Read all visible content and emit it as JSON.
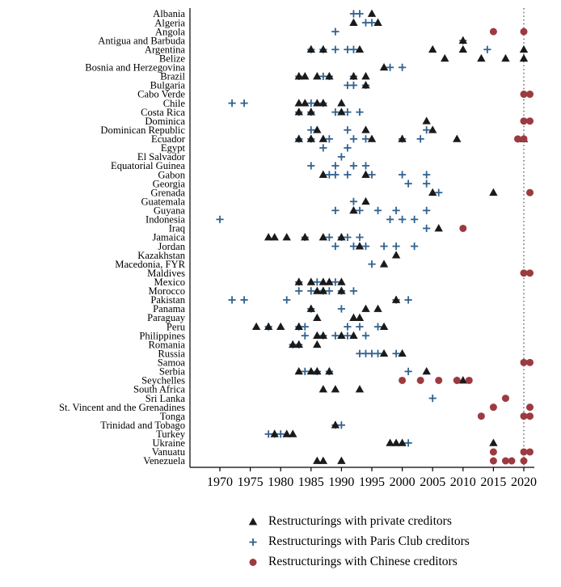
{
  "figure": {
    "background": "#ffffff",
    "axis_color": "#000000"
  },
  "chart_data": {
    "type": "scatter",
    "title": "",
    "xlabel": "",
    "ylabel": "",
    "grid": false,
    "legend_position": "bottom-left",
    "x_axis": {
      "min": 1965,
      "max": 2022,
      "ticks": [
        1970,
        1975,
        1980,
        1985,
        1990,
        1995,
        2000,
        2005,
        2010,
        2015,
        2020
      ]
    },
    "reference_line": {
      "year": 2020,
      "style": "dotted",
      "color": "#444444"
    },
    "series": [
      {
        "name": "private",
        "label": "Restructurings with private creditors",
        "marker": "triangle",
        "color": "#1a1a1a"
      },
      {
        "name": "paris",
        "label": "Restructurings with Paris Club creditors",
        "marker": "plus",
        "color": "#31628f"
      },
      {
        "name": "chinese",
        "label": "Restructurings with Chinese creditors",
        "marker": "circle",
        "color": "#9c3a40"
      }
    ],
    "countries": [
      {
        "name": "Albania",
        "private": [
          1995
        ],
        "paris": [
          1992,
          1993
        ],
        "chinese": []
      },
      {
        "name": "Algeria",
        "private": [
          1992,
          1996
        ],
        "paris": [
          1994,
          1995
        ],
        "chinese": []
      },
      {
        "name": "Angola",
        "private": [],
        "paris": [
          1989
        ],
        "chinese": [
          2015,
          2020
        ]
      },
      {
        "name": "Antigua and Barbuda",
        "private": [
          2010
        ],
        "paris": [
          2010
        ],
        "chinese": []
      },
      {
        "name": "Argentina",
        "private": [
          1985,
          1987,
          1993,
          2005,
          2010,
          2020
        ],
        "paris": [
          1985,
          1987,
          1989,
          1991,
          1992,
          2014
        ],
        "chinese": []
      },
      {
        "name": "Belize",
        "private": [
          2007,
          2013,
          2017,
          2020
        ],
        "paris": [],
        "chinese": []
      },
      {
        "name": "Bosnia and Herzegovina",
        "private": [
          1997
        ],
        "paris": [
          1998,
          2000
        ],
        "chinese": []
      },
      {
        "name": "Brazil",
        "private": [
          1983,
          1984,
          1986,
          1988,
          1992,
          1994
        ],
        "paris": [
          1983,
          1987,
          1988,
          1992
        ],
        "chinese": []
      },
      {
        "name": "Bulgaria",
        "private": [
          1994
        ],
        "paris": [
          1991,
          1992,
          1994
        ],
        "chinese": []
      },
      {
        "name": "Cabo Verde",
        "private": [],
        "paris": [],
        "chinese": [
          2020,
          2021
        ]
      },
      {
        "name": "Chile",
        "private": [
          1983,
          1984,
          1986,
          1987,
          1990
        ],
        "paris": [
          1972,
          1974,
          1985,
          1987
        ],
        "chinese": []
      },
      {
        "name": "Costa Rica",
        "private": [
          1983,
          1985,
          1990
        ],
        "paris": [
          1983,
          1985,
          1989,
          1991,
          1993
        ],
        "chinese": []
      },
      {
        "name": "Dominica",
        "private": [
          2004
        ],
        "paris": [],
        "chinese": [
          2020,
          2021
        ]
      },
      {
        "name": "Dominican Republic",
        "private": [
          1986,
          1994,
          2005
        ],
        "paris": [
          1985,
          1991,
          2004
        ],
        "chinese": []
      },
      {
        "name": "Ecuador",
        "private": [
          1983,
          1985,
          1987,
          1995,
          2000,
          2009,
          2020
        ],
        "paris": [
          1983,
          1985,
          1988,
          1992,
          1994,
          2000,
          2003
        ],
        "chinese": [
          2019,
          2020
        ]
      },
      {
        "name": "Egypt",
        "private": [],
        "paris": [
          1987,
          1991
        ],
        "chinese": []
      },
      {
        "name": "El Salvador",
        "private": [],
        "paris": [
          1990
        ],
        "chinese": []
      },
      {
        "name": "Equatorial Guinea",
        "private": [],
        "paris": [
          1985,
          1989,
          1992,
          1994
        ],
        "chinese": []
      },
      {
        "name": "Gabon",
        "private": [
          1987,
          1994
        ],
        "paris": [
          1988,
          1989,
          1991,
          1995,
          2000,
          2004
        ],
        "chinese": []
      },
      {
        "name": "Georgia",
        "private": [],
        "paris": [
          2001,
          2004
        ],
        "chinese": []
      },
      {
        "name": "Grenada",
        "private": [
          2005,
          2015
        ],
        "paris": [
          2006
        ],
        "chinese": [
          2021
        ]
      },
      {
        "name": "Guatemala",
        "private": [
          1994
        ],
        "paris": [
          1992
        ],
        "chinese": []
      },
      {
        "name": "Guyana",
        "private": [
          1992
        ],
        "paris": [
          1989,
          1993,
          1996,
          1999,
          2004
        ],
        "chinese": []
      },
      {
        "name": "Indonesia",
        "private": [],
        "paris": [
          1970,
          1998,
          2000,
          2002
        ],
        "chinese": []
      },
      {
        "name": "Iraq",
        "private": [
          2006
        ],
        "paris": [
          2004
        ],
        "chinese": [
          2010
        ]
      },
      {
        "name": "Jamaica",
        "private": [
          1978,
          1979,
          1981,
          1984,
          1987,
          1990
        ],
        "paris": [
          1984,
          1988,
          1990,
          1991,
          1993
        ],
        "chinese": []
      },
      {
        "name": "Jordan",
        "private": [
          1993
        ],
        "paris": [
          1989,
          1992,
          1994,
          1997,
          1999,
          2002
        ],
        "chinese": []
      },
      {
        "name": "Kazakhstan",
        "private": [
          1999
        ],
        "paris": [],
        "chinese": []
      },
      {
        "name": "Macedonia, FYR",
        "private": [
          1997
        ],
        "paris": [
          1995
        ],
        "chinese": []
      },
      {
        "name": "Maldives",
        "private": [],
        "paris": [],
        "chinese": [
          2020,
          2021
        ]
      },
      {
        "name": "Mexico",
        "private": [
          1983,
          1985,
          1987,
          1988,
          1990
        ],
        "paris": [
          1983,
          1986,
          1989
        ],
        "chinese": []
      },
      {
        "name": "Morocco",
        "private": [
          1986,
          1987,
          1990
        ],
        "paris": [
          1983,
          1985,
          1987,
          1988,
          1990,
          1992
        ],
        "chinese": []
      },
      {
        "name": "Pakistan",
        "private": [
          1999
        ],
        "paris": [
          1972,
          1974,
          1981,
          1999,
          2001
        ],
        "chinese": []
      },
      {
        "name": "Panama",
        "private": [
          1985,
          1994,
          1996
        ],
        "paris": [
          1985,
          1990
        ],
        "chinese": []
      },
      {
        "name": "Paraguay",
        "private": [
          1986,
          1992,
          1993
        ],
        "paris": [],
        "chinese": []
      },
      {
        "name": "Peru",
        "private": [
          1976,
          1978,
          1980,
          1983,
          1997
        ],
        "paris": [
          1978,
          1983,
          1984,
          1991,
          1993,
          1996
        ],
        "chinese": []
      },
      {
        "name": "Philippines",
        "private": [
          1986,
          1987,
          1990,
          1992
        ],
        "paris": [
          1984,
          1987,
          1989,
          1991,
          1994
        ],
        "chinese": []
      },
      {
        "name": "Romania",
        "private": [
          1982,
          1983,
          1986
        ],
        "paris": [
          1982,
          1983
        ],
        "chinese": []
      },
      {
        "name": "Russia",
        "private": [
          1997,
          2000
        ],
        "paris": [
          1993,
          1994,
          1995,
          1996,
          1999
        ],
        "chinese": []
      },
      {
        "name": "Samoa",
        "private": [],
        "paris": [],
        "chinese": [
          2020,
          2021
        ]
      },
      {
        "name": "Serbia",
        "private": [
          1983,
          1985,
          1986,
          1988,
          2004
        ],
        "paris": [
          1984,
          1986,
          1988,
          2001
        ],
        "chinese": []
      },
      {
        "name": "Seychelles",
        "private": [
          2010
        ],
        "paris": [
          2009
        ],
        "chinese": [
          2000,
          2003,
          2006,
          2009,
          2011
        ]
      },
      {
        "name": "South Africa",
        "private": [
          1987,
          1989,
          1993
        ],
        "paris": [],
        "chinese": []
      },
      {
        "name": "Sri Lanka",
        "private": [],
        "paris": [
          2005
        ],
        "chinese": [
          2017
        ]
      },
      {
        "name": "St. Vincent and the Grenadines",
        "private": [],
        "paris": [],
        "chinese": [
          2015,
          2021
        ]
      },
      {
        "name": "Tonga",
        "private": [],
        "paris": [],
        "chinese": [
          2013,
          2020,
          2021
        ]
      },
      {
        "name": "Trinidad and Tobago",
        "private": [
          1989
        ],
        "paris": [
          1989,
          1990
        ],
        "chinese": []
      },
      {
        "name": "Turkey",
        "private": [
          1979,
          1981,
          1982
        ],
        "paris": [
          1978,
          1979,
          1980
        ],
        "chinese": []
      },
      {
        "name": "Ukraine",
        "private": [
          1998,
          1999,
          2000,
          2015
        ],
        "paris": [
          2001
        ],
        "chinese": []
      },
      {
        "name": "Vanuatu",
        "private": [],
        "paris": [],
        "chinese": [
          2015,
          2020,
          2021
        ]
      },
      {
        "name": "Venezuela",
        "private": [
          1986,
          1987,
          1990
        ],
        "paris": [],
        "chinese": [
          2015,
          2017,
          2018,
          2020
        ]
      }
    ]
  }
}
